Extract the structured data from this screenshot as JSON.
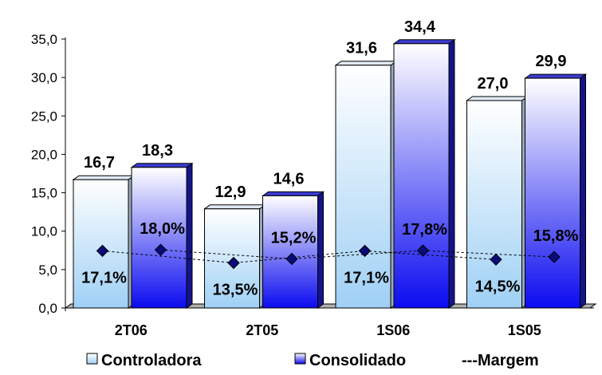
{
  "chart_data": {
    "type": "bar",
    "categories": [
      "2T06",
      "2T05",
      "1S06",
      "1S05"
    ],
    "series": [
      {
        "name": "Controladora",
        "values": [
          16.7,
          12.9,
          31.6,
          27.0
        ],
        "labels": [
          "16,7",
          "12,9",
          "31,6",
          "27,0"
        ],
        "color": "#c9e3f7"
      },
      {
        "name": "Consolidado",
        "values": [
          18.3,
          14.6,
          34.4,
          29.9
        ],
        "labels": [
          "18,3",
          "14,6",
          "34,4",
          "29,9"
        ],
        "color": "#2a2ad8"
      }
    ],
    "margem": {
      "name": "Margem",
      "controladora": {
        "values": [
          17.1,
          13.5,
          17.1,
          14.5
        ],
        "labels": [
          "17,1%",
          "13,5%",
          "17,1%",
          "14,5%"
        ]
      },
      "consolidado": {
        "values": [
          18.0,
          15.2,
          17.8,
          15.8
        ],
        "labels": [
          "18,0%",
          "15,2%",
          "17,8%",
          "15,8%"
        ]
      }
    },
    "ylim": [
      0,
      35
    ],
    "yticks": [
      0,
      5,
      10,
      15,
      20,
      25,
      30,
      35
    ],
    "ytick_labels": [
      "0,0",
      "5,0",
      "10,0",
      "15,0",
      "20,0",
      "25,0",
      "30,0",
      "35,0"
    ],
    "legend": {
      "position": "bottom",
      "items": [
        "Controladora",
        "Consolidado",
        "Margem"
      ],
      "margem_prefix": "---"
    }
  }
}
